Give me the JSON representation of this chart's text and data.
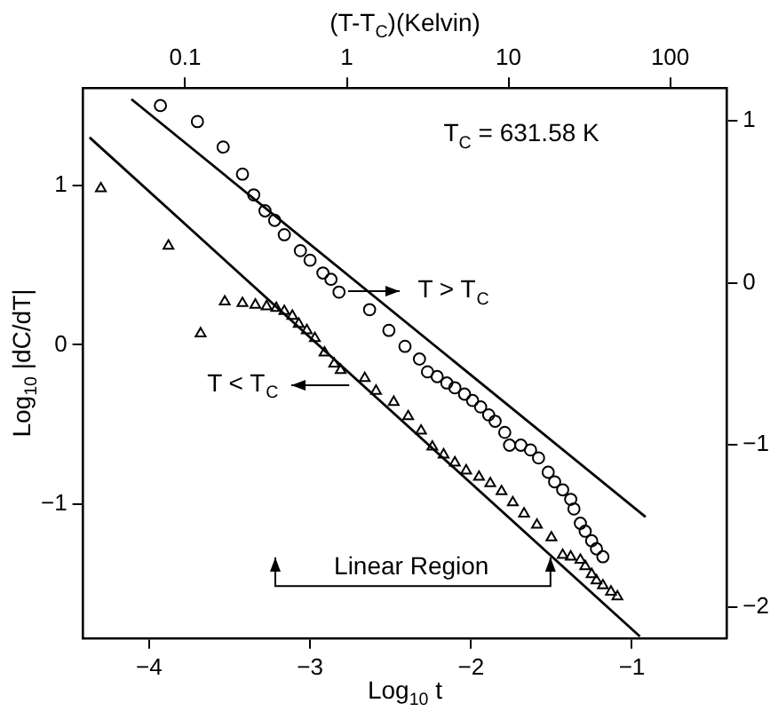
{
  "chart_data": {
    "type": "scatter",
    "xlabel": "Log$_{10}$ t",
    "ylabel": "Log$_{10}$ |dC/dT|",
    "x2label": "(T-T$_{C}$)(Kelvin)",
    "xlim": [
      -4.41,
      -0.41
    ],
    "xticks": [
      -4,
      -3,
      -2,
      -1
    ],
    "ylim": [
      -1.84,
      1.61
    ],
    "yticks": [
      -1,
      0,
      1
    ],
    "y2lim": [
      -2.19,
      1.2
    ],
    "y2ticks": [
      -2,
      -1,
      0,
      1
    ],
    "x2lim": [
      0.0234,
      224
    ],
    "x2ticks": [
      0.1,
      1,
      10,
      100
    ],
    "log": "x2",
    "grid": false,
    "legend": false,
    "annotations": [
      "T$_{C}$ = 631.58 K",
      "Linear Region",
      "T > T$_{C}$",
      "T < T$_{C}$"
    ],
    "series": [
      {
        "type": "scatter",
        "marker": "circle",
        "color": "#000000",
        "x": [
          -3.93,
          -3.7,
          -3.54,
          -3.42,
          -3.35,
          -3.28,
          -3.22,
          -3.16,
          -3.06,
          -3.0,
          -2.92,
          -2.87,
          -2.82,
          -2.63,
          -2.51,
          -2.41,
          -2.32,
          -2.27,
          -2.21,
          -2.15,
          -2.1,
          -2.04,
          -1.99,
          -1.94,
          -1.89,
          -1.85,
          -1.79,
          -1.76,
          -1.69,
          -1.63,
          -1.58,
          -1.52,
          -1.48,
          -1.43,
          -1.38,
          -1.36,
          -1.32,
          -1.29,
          -1.25,
          -1.22,
          -1.18
        ],
        "values": [
          1.5,
          1.4,
          1.24,
          1.07,
          0.94,
          0.84,
          0.78,
          0.69,
          0.59,
          0.53,
          0.45,
          0.41,
          0.33,
          0.22,
          0.09,
          -0.01,
          -0.09,
          -0.17,
          -0.2,
          -0.24,
          -0.27,
          -0.31,
          -0.35,
          -0.39,
          -0.44,
          -0.48,
          -0.55,
          -0.63,
          -0.63,
          -0.66,
          -0.71,
          -0.8,
          -0.86,
          -0.91,
          -0.97,
          -1.03,
          -1.12,
          -1.17,
          -1.23,
          -1.28,
          -1.33
        ]
      },
      {
        "type": "scatter",
        "marker": "triangle",
        "color": "#000000",
        "x": [
          -4.3,
          -3.88,
          -3.68,
          -3.53,
          -3.42,
          -3.34,
          -3.27,
          -3.21,
          -3.16,
          -3.11,
          -3.07,
          -3.02,
          -2.97,
          -2.91,
          -2.85,
          -2.81,
          -2.66,
          -2.59,
          -2.48,
          -2.39,
          -2.31,
          -2.24,
          -2.17,
          -2.1,
          -2.03,
          -1.95,
          -1.88,
          -1.81,
          -1.74,
          -1.67,
          -1.59,
          -1.5,
          -1.43,
          -1.38,
          -1.32,
          -1.29,
          -1.25,
          -1.22,
          -1.18,
          -1.13,
          -1.09
        ],
        "values": [
          0.98,
          0.62,
          0.07,
          0.27,
          0.26,
          0.25,
          0.24,
          0.23,
          0.21,
          0.18,
          0.13,
          0.09,
          0.04,
          -0.05,
          -0.12,
          -0.16,
          -0.21,
          -0.29,
          -0.36,
          -0.45,
          -0.54,
          -0.64,
          -0.69,
          -0.74,
          -0.79,
          -0.83,
          -0.87,
          -0.92,
          -0.99,
          -1.06,
          -1.13,
          -1.21,
          -1.32,
          -1.33,
          -1.35,
          -1.39,
          -1.44,
          -1.48,
          -1.51,
          -1.55,
          -1.58
        ]
      },
      {
        "type": "line",
        "marker": "none",
        "line_style": "solid",
        "color": "#000000",
        "x": [
          -4.11,
          -0.915
        ],
        "values": [
          1.54,
          -1.08
        ]
      },
      {
        "type": "line",
        "marker": "none",
        "line_style": "solid",
        "color": "#000000",
        "x": [
          -4.37,
          -0.95
        ],
        "values": [
          1.3,
          -1.83
        ]
      }
    ]
  }
}
